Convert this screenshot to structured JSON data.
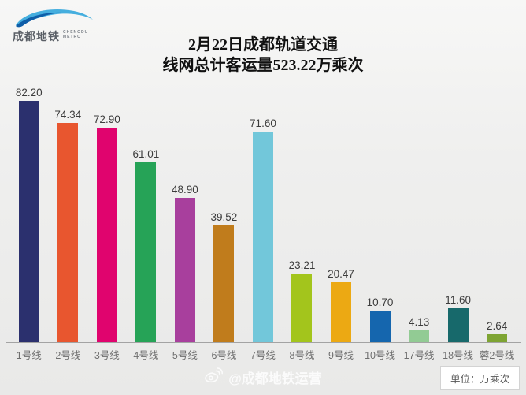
{
  "logo": {
    "cn": "成都地铁",
    "en": "CHENGDU\nMETRO",
    "swoosh_colors": {
      "dark": "#0f5ea8",
      "light": "#45aede"
    }
  },
  "title": {
    "line1": "2月22日成都轨道交通",
    "line2": "线网总计客运量523.22万乘次"
  },
  "chart_data": {
    "type": "bar",
    "title": "2月22日成都轨道交通线网总计客运量523.22万乘次",
    "xlabel": "",
    "ylabel": "",
    "unit": "万乘次",
    "total": 523.22,
    "date": "2月22日",
    "grid": false,
    "legend": "none",
    "ylim": [
      0,
      90
    ],
    "categories": [
      "1号线",
      "2号线",
      "3号线",
      "4号线",
      "5号线",
      "6号线",
      "7号线",
      "8号线",
      "9号线",
      "10号线",
      "17号线",
      "18号线",
      "蓉2号线"
    ],
    "values": [
      82.2,
      74.34,
      72.9,
      61.01,
      48.9,
      39.52,
      71.6,
      23.21,
      20.47,
      10.7,
      4.13,
      11.6,
      2.64
    ],
    "value_labels": [
      "82.20",
      "74.34",
      "72.90",
      "61.01",
      "48.90",
      "39.52",
      "71.60",
      "23.21",
      "20.47",
      "10.70",
      "4.13",
      "11.60",
      "2.64"
    ],
    "bar_colors": [
      "#2b306e",
      "#e8562f",
      "#e0046e",
      "#26a357",
      "#a83f9d",
      "#c07c1c",
      "#72c7da",
      "#a3c51c",
      "#eca913",
      "#1566ae",
      "#92cb94",
      "#17696b",
      "#7ea433"
    ]
  },
  "footer": {
    "watermark": "@成都地铁运营",
    "unit_label": "单位：万乘次"
  }
}
